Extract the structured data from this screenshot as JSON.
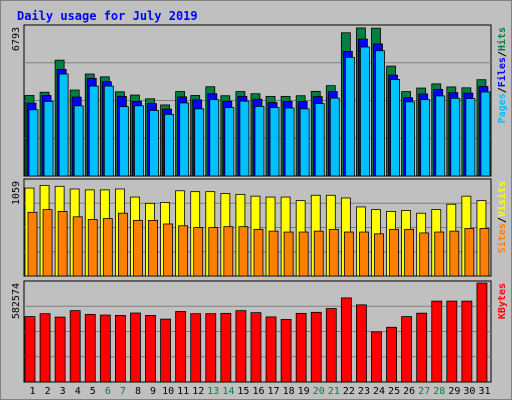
{
  "title": "Daily usage for July 2019",
  "colors": {
    "background": "#c0c0c0",
    "title": "#0000ff",
    "axis_text": "#000000",
    "weekend_day": "#008040",
    "hits": "#008040",
    "files": "#0000ff",
    "pages": "#00c0ff",
    "visits": "#ffff00",
    "sites": "#ff8000",
    "kbytes": "#ff0000",
    "grid": "#808080"
  },
  "chart_data": [
    {
      "type": "bar",
      "panel": "top",
      "ytick": "6793",
      "legend": [
        "Pages",
        "Files",
        "Hits"
      ],
      "ylim": [
        0,
        6793
      ],
      "days": [
        "1",
        "2",
        "3",
        "4",
        "5",
        "6",
        "7",
        "8",
        "9",
        "10",
        "11",
        "12",
        "13",
        "14",
        "15",
        "16",
        "17",
        "18",
        "19",
        "20",
        "21",
        "22",
        "23",
        "24",
        "25",
        "26",
        "27",
        "28",
        "29",
        "30",
        "31"
      ],
      "weekend_days": [
        "6",
        "7",
        "13",
        "14",
        "20",
        "21",
        "27",
        "28"
      ],
      "series": [
        {
          "name": "Hits",
          "values": [
            3670,
            3820,
            5280,
            3920,
            4650,
            4520,
            3840,
            3690,
            3520,
            3240,
            3850,
            3670,
            4070,
            3660,
            3850,
            3750,
            3630,
            3630,
            3660,
            3860,
            4120,
            6530,
            6750,
            6740,
            5010,
            3850,
            4010,
            4200,
            4060,
            4020,
            4390
          ]
        },
        {
          "name": "Files",
          "values": [
            3320,
            3670,
            4860,
            3600,
            4450,
            4300,
            3630,
            3400,
            3300,
            3050,
            3610,
            3470,
            3750,
            3410,
            3630,
            3500,
            3350,
            3400,
            3400,
            3620,
            3850,
            5680,
            6240,
            6020,
            4600,
            3570,
            3740,
            3950,
            3800,
            3780,
            4080
          ]
        },
        {
          "name": "Pages",
          "values": [
            3020,
            3400,
            4650,
            3200,
            4100,
            4100,
            3160,
            3200,
            2990,
            2810,
            3330,
            3060,
            3480,
            3120,
            3410,
            3170,
            3120,
            3100,
            3060,
            3300,
            3550,
            5410,
            5880,
            5710,
            4400,
            3380,
            3480,
            3650,
            3540,
            3530,
            3830
          ]
        }
      ]
    },
    {
      "type": "bar",
      "panel": "middle",
      "ytick": "1059",
      "legend": [
        "Sites",
        "Visits"
      ],
      "ylim": [
        0,
        1059
      ],
      "series": [
        {
          "name": "Visits",
          "values": [
            980,
            1010,
            1000,
            970,
            960,
            960,
            970,
            880,
            810,
            820,
            950,
            940,
            940,
            920,
            910,
            890,
            880,
            880,
            840,
            900,
            900,
            870,
            770,
            740,
            720,
            730,
            700,
            740,
            800,
            890,
            840
          ]
        },
        {
          "name": "Sites",
          "values": [
            710,
            740,
            720,
            660,
            630,
            640,
            700,
            620,
            620,
            580,
            560,
            540,
            540,
            550,
            550,
            520,
            500,
            490,
            490,
            500,
            520,
            490,
            490,
            470,
            520,
            520,
            480,
            490,
            500,
            530,
            530
          ]
        }
      ]
    },
    {
      "type": "bar",
      "panel": "bottom",
      "ytick": "582574",
      "legend": [
        "KBytes"
      ],
      "ylim": [
        0,
        582574
      ],
      "series": [
        {
          "name": "KBytes",
          "values": [
            385000,
            402000,
            382000,
            420000,
            398000,
            394000,
            392000,
            406000,
            392000,
            370000,
            415000,
            402000,
            402000,
            404000,
            420000,
            408000,
            383000,
            368000,
            404000,
            410000,
            432000,
            495000,
            454000,
            295000,
            322000,
            385000,
            405000,
            476000,
            476000,
            476000,
            582574
          ]
        }
      ]
    }
  ]
}
